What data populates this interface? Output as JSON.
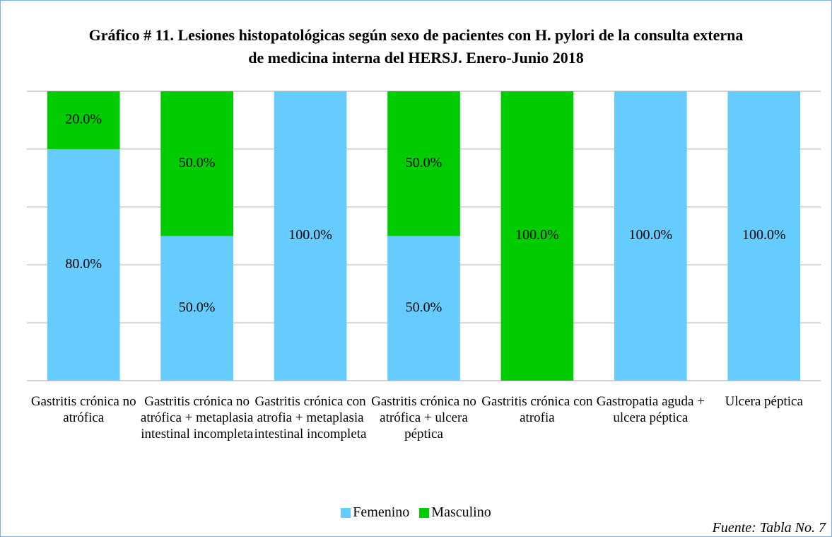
{
  "chart_data": {
    "type": "stacked_bar",
    "title": "Gráfico # 11. Lesiones histopatológicas según sexo de pacientes con H. pylori de la consulta externa de medicina interna del HERSJ. Enero-Junio 2018",
    "categories": [
      "Gastritis crónica no atrófica",
      "Gastritis crónica no atrófica + metaplasia intestinal incompleta",
      "Gastritis crónica con atrofia + metaplasia intestinal incompleta",
      "Gastritis crónica no atrófica + ulcera péptica",
      "Gastritis crónica con atrofia",
      "Gastropatia aguda + ulcera péptica",
      "Ulcera péptica"
    ],
    "series": [
      {
        "name": "Femenino",
        "color": "#66ccff",
        "values": [
          80,
          50,
          100,
          50,
          0,
          100,
          100
        ],
        "value_labels": [
          "80.0%",
          "50.0%",
          "100.0%",
          "50.0%",
          null,
          "100.0%",
          "100.0%"
        ]
      },
      {
        "name": "Masculino",
        "color": "#00cc00",
        "values": [
          20,
          50,
          0,
          50,
          100,
          0,
          0
        ],
        "value_labels": [
          "20.0%",
          "50.0%",
          null,
          "50.0%",
          "100.0%",
          null,
          null
        ]
      }
    ],
    "ylim": [
      0,
      100
    ],
    "yticks": [
      0,
      20,
      40,
      60,
      80,
      100
    ],
    "grid": true,
    "legend": "bottom",
    "source": "Fuente: Tabla No. 7"
  }
}
